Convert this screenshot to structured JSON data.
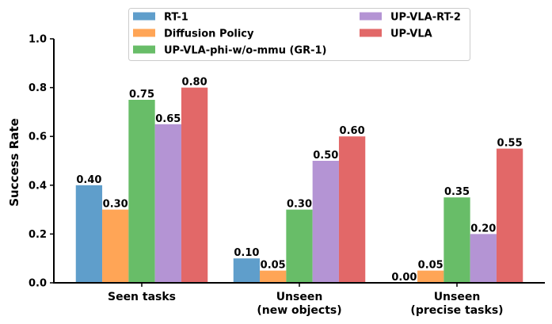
{
  "chart_data": {
    "type": "bar",
    "title": "",
    "xlabel": "",
    "ylabel": "Success Rate",
    "ylim": [
      0,
      1.0
    ],
    "yticks": [
      "0.0",
      "0.2",
      "0.4",
      "0.6",
      "0.8",
      "1.0"
    ],
    "grid": false,
    "legend_position": "top-center",
    "categories": [
      [
        "Seen tasks"
      ],
      [
        "Unseen",
        "(new objects)"
      ],
      [
        "Unseen",
        "(precise tasks)"
      ]
    ],
    "series": [
      {
        "name": "RT-1",
        "color": "#5f9ecb",
        "values": [
          0.4,
          0.1,
          0.0
        ],
        "labels": [
          "0.40",
          "0.10",
          "0.00"
        ]
      },
      {
        "name": "Diffusion Policy",
        "color": "#ffa556",
        "values": [
          0.3,
          0.05,
          0.05
        ],
        "labels": [
          "0.30",
          "0.05",
          "0.05"
        ]
      },
      {
        "name": "UP-VLA-phi-w/o-mmu (GR-1)",
        "color": "#68bd68",
        "values": [
          0.75,
          0.3,
          0.35
        ],
        "labels": [
          "0.75",
          "0.30",
          "0.35"
        ]
      },
      {
        "name": "UP-VLA-RT-2",
        "color": "#b494d4",
        "values": [
          0.65,
          0.5,
          0.2
        ],
        "labels": [
          "0.65",
          "0.50",
          "0.20"
        ]
      },
      {
        "name": "UP-VLA",
        "color": "#e26868",
        "values": [
          0.8,
          0.6,
          0.55
        ],
        "labels": [
          "0.80",
          "0.60",
          "0.55"
        ]
      }
    ]
  }
}
